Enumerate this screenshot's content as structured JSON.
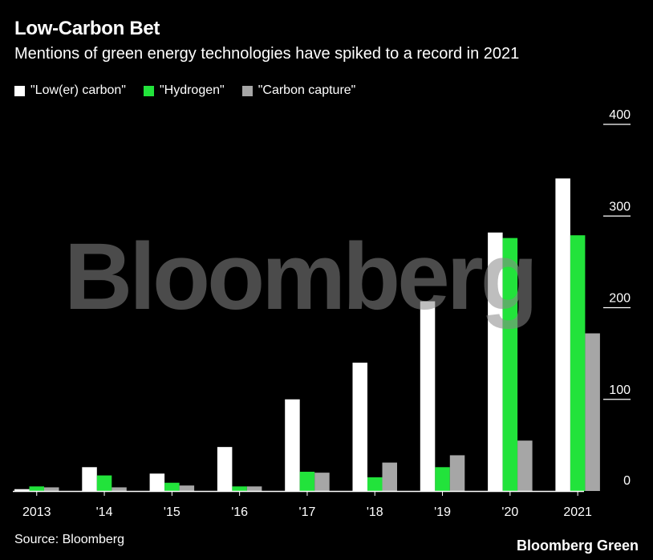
{
  "title": "Low-Carbon Bet",
  "subtitle": "Mentions of green energy technologies have spiked to a record in 2021",
  "source": "Source: Bloomberg",
  "brand": "Bloomberg Green",
  "watermark": "Bloomberg",
  "colors": {
    "background": "#000000",
    "low_carbon": "#ffffff",
    "hydrogen": "#22e33b",
    "carbon_capture": "#a6a6a6",
    "watermark": "#3a3a3a"
  },
  "chart_data": {
    "type": "bar",
    "categories": [
      "2013",
      "'14",
      "'15",
      "'16",
      "'17",
      "'18",
      "'19",
      "'20",
      "2021"
    ],
    "series": [
      {
        "name": "\"Low(er) carbon\"",
        "values": [
          2,
          26,
          19,
          48,
          100,
          140,
          207,
          282,
          341
        ]
      },
      {
        "name": "\"Hydrogen\"",
        "values": [
          5,
          17,
          9,
          5,
          21,
          15,
          26,
          276,
          279
        ]
      },
      {
        "name": "\"Carbon capture\"",
        "values": [
          4,
          4,
          6,
          5,
          20,
          31,
          39,
          55,
          172
        ]
      }
    ],
    "yticks": [
      0,
      100,
      200,
      300,
      400
    ],
    "ylim": [
      0,
      400
    ],
    "y_axis_position": "right",
    "legend_position": "top-left",
    "grid": false
  }
}
